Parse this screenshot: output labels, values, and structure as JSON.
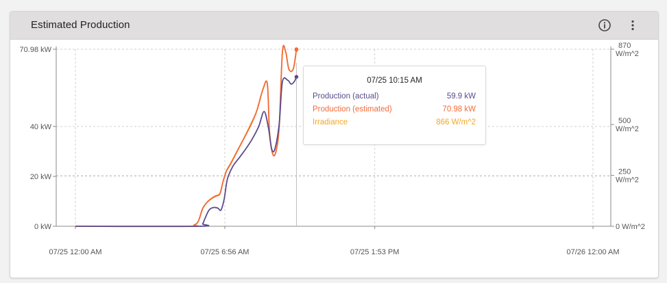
{
  "card": {
    "title": "Estimated Production",
    "info_icon": "info-circle-icon",
    "menu_icon": "more-vertical-icon"
  },
  "tooltip": {
    "title": "07/25 10:15 AM",
    "rows": [
      {
        "label": "Production (actual)",
        "value": "59.9 kW",
        "color": "#5a4a8c"
      },
      {
        "label": "Production (estimated)",
        "value": "70.98 kW",
        "color": "#f26b3a"
      },
      {
        "label": "Irradiance",
        "value": "866 W/m^2",
        "color": "#f5a623"
      }
    ]
  },
  "chart_data": {
    "type": "line",
    "x_ticks": [
      "07/25 12:00 AM",
      "07/25 6:56 AM",
      "07/25 1:53 PM",
      "07/26 12:00 AM"
    ],
    "y_left_ticks": [
      "70.98 kW",
      "40 kW",
      "20 kW",
      "0 kW"
    ],
    "y_left_tick_values": [
      70.98,
      40,
      20,
      0
    ],
    "y_left_range": [
      0,
      70.98
    ],
    "y_right_ticks": [
      [
        "870",
        "W/m^2"
      ],
      [
        "500",
        "W/m^2"
      ],
      [
        "250",
        "W/m^2"
      ],
      [
        "0 W/m^2"
      ]
    ],
    "y_right_tick_values": [
      870,
      500,
      250,
      0
    ],
    "y_right_range": [
      0,
      870
    ],
    "x_tick_hours": [
      0,
      6.93,
      13.88,
      24
    ],
    "x_range_hours": [
      0,
      24
    ],
    "grid": true,
    "hover_time_hours": 10.25,
    "series": [
      {
        "name": "Production (actual)",
        "axis": "left",
        "color": "#5a4a8c",
        "x": [
          0,
          5.7,
          5.9,
          6.0,
          6.2,
          6.4,
          6.6,
          6.75,
          6.9,
          7.05,
          7.3,
          7.6,
          7.9,
          8.2,
          8.5,
          8.75,
          8.95,
          9.1,
          9.25,
          9.45,
          9.6,
          9.85,
          10.0,
          10.15,
          10.25
        ],
        "y": [
          0,
          0,
          1,
          3,
          6.5,
          7.5,
          7.3,
          6.5,
          11,
          19,
          24,
          27.5,
          31,
          35,
          40,
          46,
          39.5,
          31,
          31,
          41,
          58,
          58.5,
          57,
          58,
          59.9
        ]
      },
      {
        "name": "Production (estimated)",
        "axis": "left",
        "color": "#f26b3a",
        "x": [
          0,
          5.2,
          5.5,
          5.7,
          5.9,
          6.1,
          6.3,
          6.5,
          6.7,
          6.85,
          7.0,
          7.2,
          7.5,
          7.8,
          8.1,
          8.4,
          8.7,
          8.9,
          9.0,
          9.15,
          9.3,
          9.45,
          9.6,
          9.75,
          9.9,
          10.1,
          10.25
        ],
        "y": [
          0,
          0,
          0.5,
          2,
          7,
          9.5,
          11,
          12,
          13,
          18,
          22,
          25,
          30,
          35,
          40,
          46,
          55,
          57,
          38,
          29,
          30,
          40,
          70,
          70,
          63,
          63,
          70.98
        ]
      },
      {
        "name": "Irradiance",
        "axis": "right",
        "color": "#f5a623",
        "x": [
          0,
          5.2,
          5.5,
          5.7,
          5.9,
          6.1,
          6.3,
          6.5,
          6.7,
          6.85,
          7.0,
          7.2,
          7.5,
          7.8,
          8.1,
          8.4,
          8.7,
          8.9,
          9.0,
          9.15,
          9.3,
          9.45,
          9.6,
          9.75,
          9.9,
          10.1,
          10.25
        ],
        "y": [
          0,
          0,
          5,
          25,
          88,
          118,
          137,
          150,
          162,
          222,
          272,
          310,
          370,
          430,
          495,
          565,
          675,
          700,
          465,
          355,
          368,
          490,
          855,
          858,
          772,
          772,
          866
        ]
      }
    ]
  }
}
